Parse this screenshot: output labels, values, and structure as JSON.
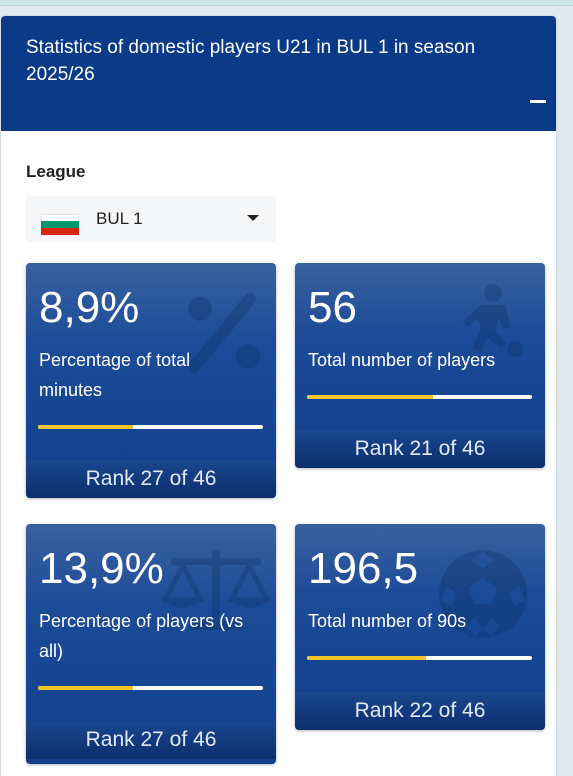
{
  "panel": {
    "title": "Statistics of domestic players U21 in BUL 1 in season 2025/26",
    "collapse_icon": "minus-icon"
  },
  "league": {
    "label": "League",
    "selected": "BUL 1",
    "flag": "bulgaria-flag"
  },
  "cards": [
    {
      "value": "8,9%",
      "label": "Percentage of total minutes",
      "rank": "Rank 27 of 46",
      "icon": "percent-icon",
      "progress": 0.42
    },
    {
      "value": "56",
      "label": "Total number of players",
      "rank": "Rank 21 of 46",
      "icon": "player-icon",
      "progress": 0.56
    },
    {
      "value": "13,9%",
      "label": "Percentage of players (vs all)",
      "rank": "Rank 27 of 46",
      "icon": "scale-icon",
      "progress": 0.42
    },
    {
      "value": "196,5",
      "label": "Total number of 90s",
      "rank": "Rank 22 of 46",
      "icon": "football-icon",
      "progress": 0.53
    }
  ]
}
